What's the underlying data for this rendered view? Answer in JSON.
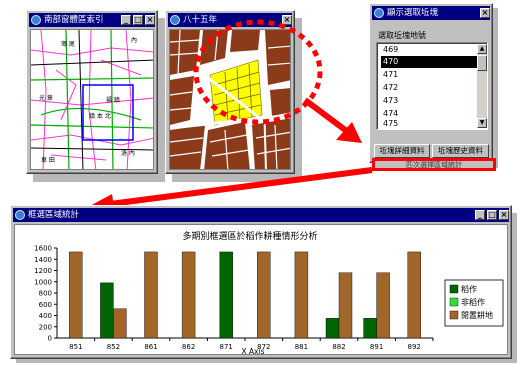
{
  "map_window_1": {
    "title": "南部窗體區索引"
  },
  "map_window_2": {
    "title": "八十五年"
  },
  "parcel_window": {
    "title": "顯示選取坵塊",
    "label": "選取坵塊地號",
    "items": [
      "469",
      "470",
      "471",
      "472",
      "473",
      "474",
      "475"
    ],
    "selected": "470",
    "btn_detail": "坵塊詳細資料",
    "btn_history": "坵塊歷史資料",
    "btn_stats": "匹次選擇區域統計"
  },
  "chart_window": {
    "title": "框選區域統計"
  },
  "chart_data": {
    "type": "bar",
    "title": "多期別框選區於稻作耕種情形分析",
    "xlabel": "X Axis",
    "ylabel": "",
    "ylim": [
      0,
      1600
    ],
    "yticks": [
      0,
      200,
      400,
      600,
      800,
      1000,
      1200,
      1400,
      1600
    ],
    "categories": [
      "851",
      "852",
      "861",
      "862",
      "871",
      "872",
      "881",
      "882",
      "891",
      "892"
    ],
    "series": [
      {
        "name": "稻作",
        "color": "#006400",
        "values": [
          0,
          980,
          0,
          0,
          1530,
          0,
          0,
          350,
          350,
          0
        ]
      },
      {
        "name": "非稻作",
        "color": "#33dd33",
        "values": [
          0,
          0,
          0,
          0,
          0,
          0,
          0,
          0,
          0,
          0
        ]
      },
      {
        "name": "閒置耕地",
        "color": "#a0662a",
        "values": [
          1530,
          520,
          1530,
          1530,
          0,
          1530,
          1530,
          1160,
          1160,
          1530
        ]
      }
    ],
    "legend_position": "right",
    "grid": false
  },
  "colors": {
    "titlebar": "#000080",
    "highlight_red": "#ff0000",
    "window_face": "#c0c0c0"
  }
}
